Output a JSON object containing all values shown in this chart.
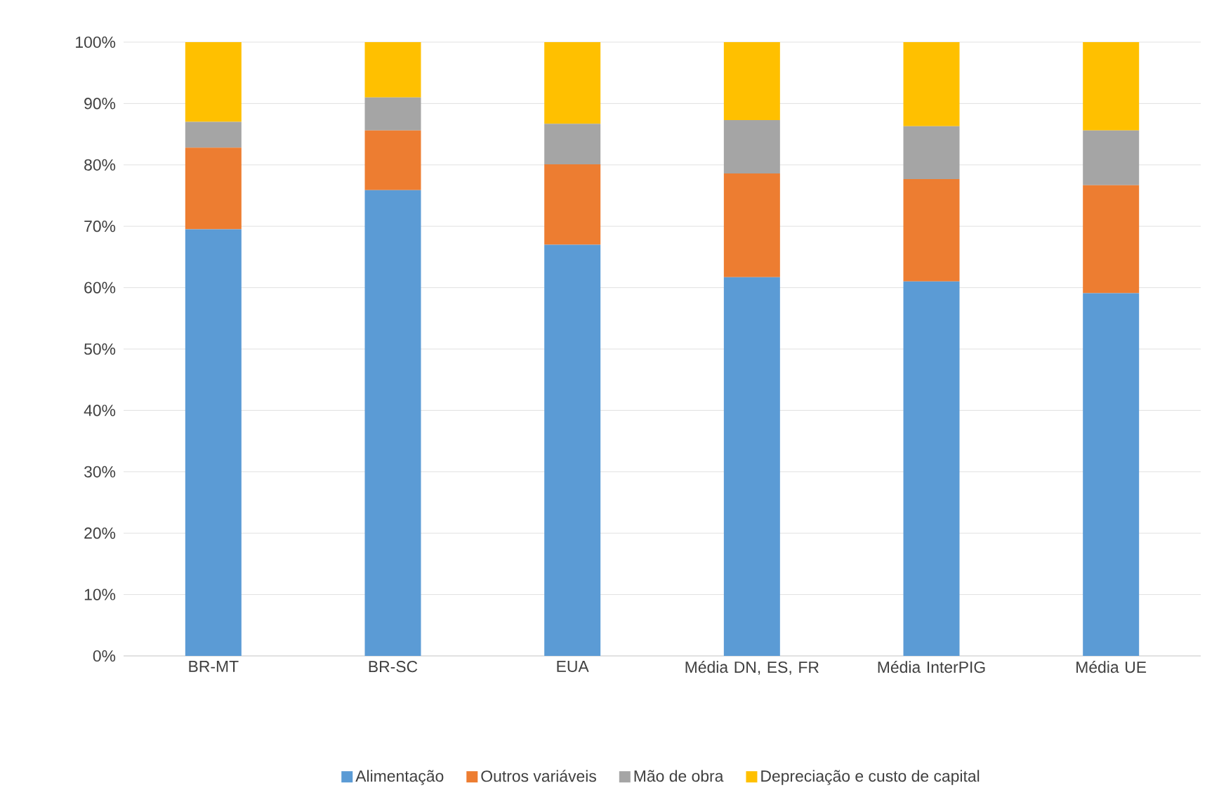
{
  "chart_data": {
    "type": "bar",
    "stacked": true,
    "grid": "y",
    "legend": "bottom",
    "categories": [
      "BR-MT",
      "BR-SC",
      "EUA",
      "Média DN, ES, FR",
      "Média InterPIG",
      "Média UE"
    ],
    "ylim": [
      0,
      100
    ],
    "yticks": [
      {
        "value": 0,
        "label": "0%"
      },
      {
        "value": 10,
        "label": "10%"
      },
      {
        "value": 20,
        "label": "20%"
      },
      {
        "value": 30,
        "label": "30%"
      },
      {
        "value": 40,
        "label": "40%"
      },
      {
        "value": 50,
        "label": "50%"
      },
      {
        "value": 60,
        "label": "60%"
      },
      {
        "value": 70,
        "label": "70%"
      },
      {
        "value": 80,
        "label": "80%"
      },
      {
        "value": 90,
        "label": "90%"
      },
      {
        "value": 100,
        "label": "100%"
      }
    ],
    "series": [
      {
        "name": "Alimentação",
        "color": "#5b9bd5",
        "values": [
          69.5,
          75.9,
          67.0,
          61.7,
          61.0,
          59.1
        ]
      },
      {
        "name": "Outros variáveis",
        "color": "#ed7d31",
        "values": [
          13.3,
          9.7,
          13.1,
          16.9,
          16.7,
          17.6
        ]
      },
      {
        "name": "Mão de obra",
        "color": "#a5a5a5",
        "values": [
          4.2,
          5.4,
          6.6,
          8.7,
          8.6,
          8.9
        ]
      },
      {
        "name": "Depreciação e custo de capital",
        "color": "#ffc000",
        "values": [
          13.0,
          9.0,
          13.3,
          12.7,
          13.7,
          14.4
        ]
      }
    ]
  }
}
